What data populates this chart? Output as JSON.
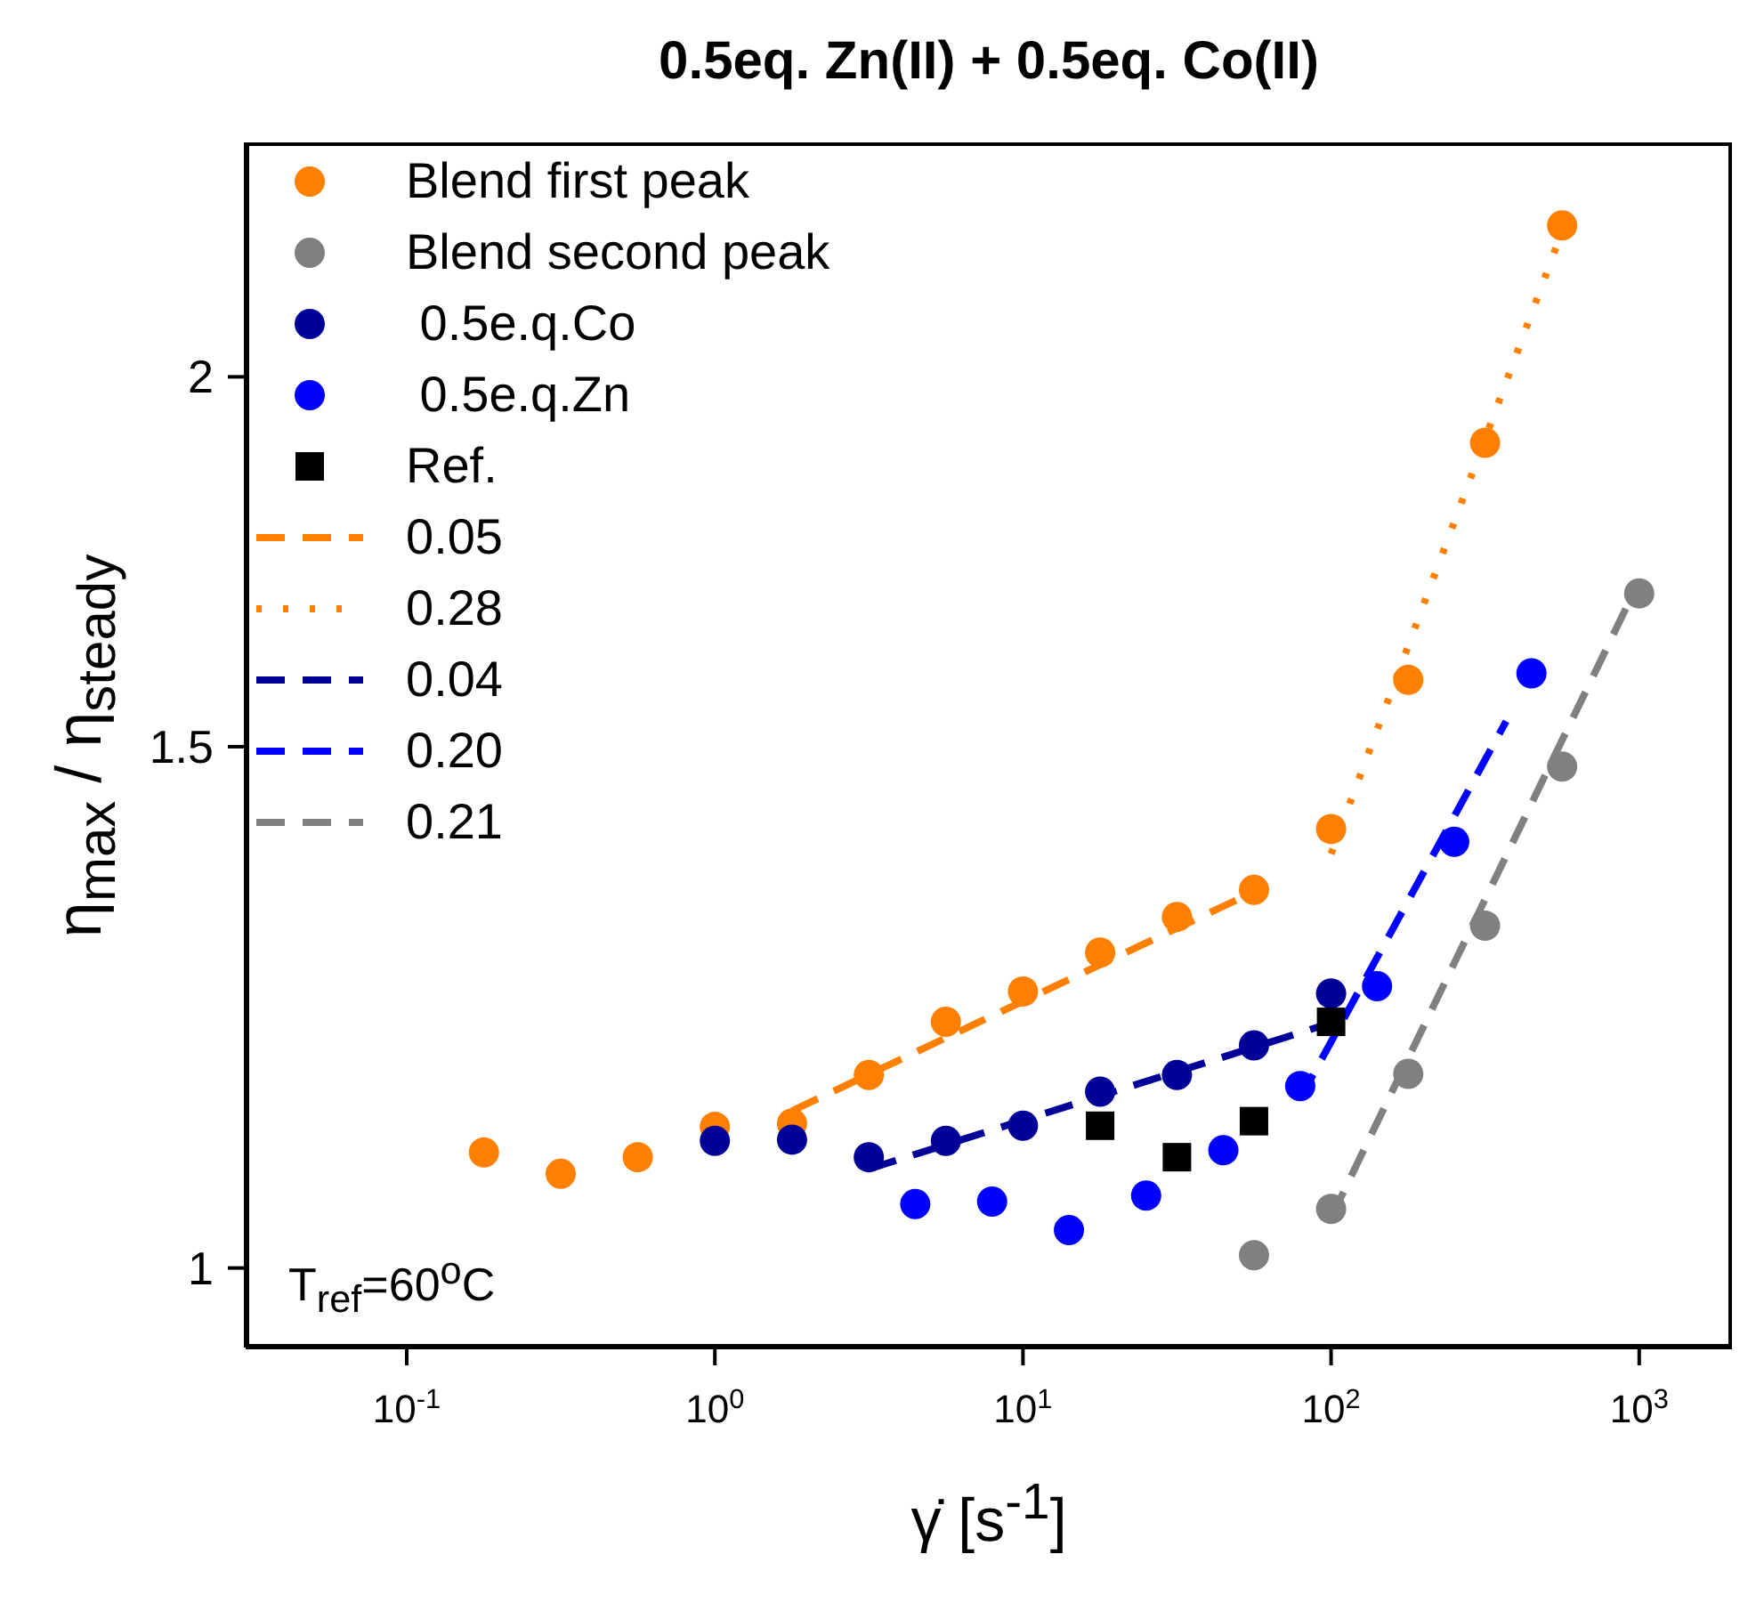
{
  "chart_data": {
    "type": "scatter",
    "title": "0.5eq. Zn(II) + 0.5eq. Co(II)",
    "xlabel": "γ̇ [s$^{-1}$]",
    "ylabel": "η$_{max}$ / η$_{steady}$",
    "log": "xy",
    "grid": false,
    "legend": "top left",
    "xlim": [
      0.03,
      2000
    ],
    "ylim": [
      0.94,
      2.4
    ],
    "xticks": [
      {
        "value": 0.1,
        "label": "10$^{-1}$"
      },
      {
        "value": 1,
        "label": "10$^{0}$"
      },
      {
        "value": 10,
        "label": "10$^{1}$"
      },
      {
        "value": 100,
        "label": "10$^{2}$"
      },
      {
        "value": 1000,
        "label": "10$^{3}$"
      }
    ],
    "yticks": [
      1,
      1.5,
      2
    ],
    "annotations": [
      "T$_{ref}$=60$^{o}$C"
    ],
    "series": [
      {
        "name": "Blend first peak",
        "marker": "circle",
        "color": "#ff8000",
        "x": [
          0.178,
          0.316,
          0.562,
          1,
          1.78,
          3.16,
          5.62,
          10,
          17.8,
          31.6,
          56.2,
          100,
          178,
          316,
          562
        ],
        "values": [
          1.094,
          1.076,
          1.09,
          1.116,
          1.119,
          1.162,
          1.211,
          1.24,
          1.278,
          1.314,
          1.342,
          1.407,
          1.58,
          1.9,
          2.25
        ]
      },
      {
        "name": "Blend second peak",
        "marker": "circle",
        "color": "#808080",
        "x": [
          56.2,
          100,
          178,
          316,
          562,
          1000
        ],
        "values": [
          1.01,
          1.047,
          1.163,
          1.305,
          1.477,
          1.69
        ]
      },
      {
        "name": " 0.5e.q.Co",
        "marker": "circle",
        "color": "#000099",
        "x": [
          1,
          1.78,
          3.16,
          5.62,
          10,
          17.8,
          31.6,
          56.2,
          100
        ],
        "values": [
          1.104,
          1.105,
          1.09,
          1.104,
          1.117,
          1.147,
          1.162,
          1.189,
          1.238
        ]
      },
      {
        "name": " 0.5e.q.Zn",
        "marker": "circle",
        "color": "#0000ff",
        "x": [
          4.47,
          7.94,
          14.1,
          25.1,
          44.7,
          79.4,
          141,
          251,
          447
        ],
        "values": [
          1.051,
          1.053,
          1.03,
          1.058,
          1.096,
          1.152,
          1.245,
          1.393,
          1.588
        ]
      },
      {
        "name": "Ref.",
        "marker": "square",
        "color": "#000000",
        "x": [
          17.8,
          31.6,
          56.2,
          100
        ],
        "values": [
          1.117,
          1.09,
          1.121,
          1.211
        ]
      },
      {
        "name": "0.05",
        "type": "line",
        "line_style": "dashed",
        "color": "#ff8000",
        "x": [
          1.78,
          56.2
        ],
        "values": [
          1.13,
          1.34
        ]
      },
      {
        "name": "0.28",
        "type": "line",
        "line_style": "dotted",
        "color": "#ff8000",
        "x": [
          100,
          562
        ],
        "values": [
          1.38,
          2.24
        ]
      },
      {
        "name": "0.04",
        "type": "line",
        "line_style": "dashed",
        "color": "#000099",
        "x": [
          3.16,
          100
        ],
        "values": [
          1.08,
          1.21
        ]
      },
      {
        "name": "0.20",
        "type": "line",
        "line_style": "dashed",
        "color": "#0000ff",
        "x": [
          79,
          370
        ],
        "values": [
          1.14,
          1.53
        ]
      },
      {
        "name": "0.21",
        "type": "line",
        "line_style": "dashed",
        "color": "#808080",
        "x": [
          100,
          930
        ],
        "values": [
          1.04,
          1.68
        ]
      }
    ]
  }
}
